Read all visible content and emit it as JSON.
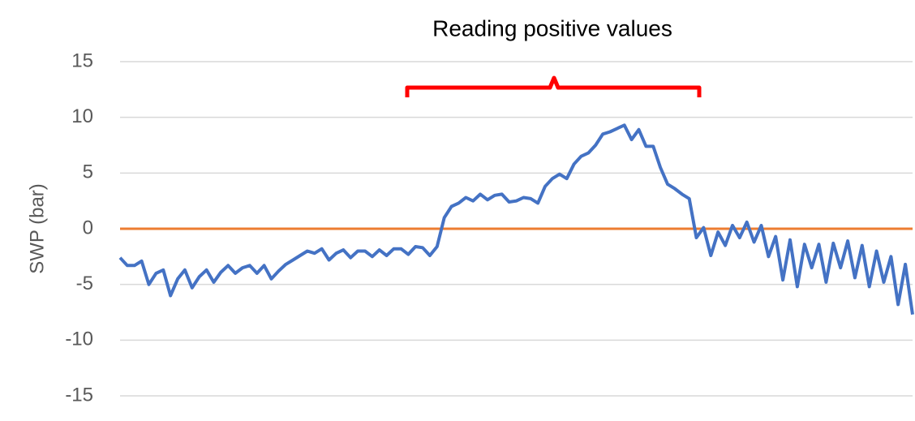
{
  "chart_data": {
    "type": "line",
    "annotation": "Reading positive values",
    "ylabel": "SWP (bar)",
    "ylim": [
      -15,
      15
    ],
    "yticks": [
      -15,
      -10,
      -5,
      0,
      5,
      10,
      15
    ],
    "grid": true,
    "reference_line": {
      "value": 0,
      "color": "#ed7d31"
    },
    "annotation_color": "#ff0000",
    "series": [
      {
        "color": "#4472c4",
        "values": [
          -2.6,
          -3.3,
          -3.3,
          -2.9,
          -5,
          -4,
          -3.7,
          -6,
          -4.5,
          -3.7,
          -5.3,
          -4.3,
          -3.7,
          -4.8,
          -3.9,
          -3.3,
          -4,
          -3.5,
          -3.3,
          -4,
          -3.3,
          -4.5,
          -3.8,
          -3.2,
          -2.8,
          -2.4,
          -2.0,
          -2.2,
          -1.8,
          -2.8,
          -2.2,
          -1.9,
          -2.6,
          -2.0,
          -2.0,
          -2.5,
          -1.9,
          -2.4,
          -1.8,
          -1.8,
          -2.3,
          -1.6,
          -1.7,
          -2.4,
          -1.6,
          1.0,
          2.0,
          2.3,
          2.8,
          2.5,
          3.1,
          2.6,
          3.0,
          3.1,
          2.4,
          2.5,
          2.8,
          2.7,
          2.3,
          3.8,
          4.5,
          4.9,
          4.5,
          5.8,
          6.5,
          6.8,
          7.5,
          8.5,
          8.7,
          9.0,
          9.3,
          8.0,
          8.9,
          7.4,
          7.4,
          5.5,
          4.0,
          3.6,
          3.1,
          2.7,
          -0.8,
          0.1,
          -2.4,
          -0.3,
          -1.5,
          0.3,
          -0.8,
          0.6,
          -1.2,
          0.3,
          -2.5,
          -0.7,
          -4.6,
          -1.0,
          -5.2,
          -1.4,
          -3.5,
          -1.4,
          -4.8,
          -1.3,
          -3.5,
          -1.1,
          -4.4,
          -1.5,
          -5.2,
          -2.0,
          -4.8,
          -2.5,
          -6.8,
          -3.2,
          -7.7
        ]
      }
    ]
  }
}
